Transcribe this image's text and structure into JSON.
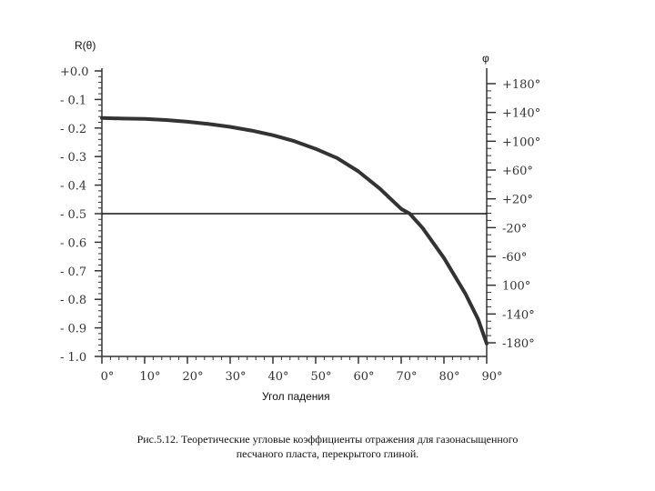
{
  "chart_data": {
    "type": "line",
    "y_left_label": "R(θ)",
    "y_right_label": "φ",
    "xlabel": "Угол падения",
    "xlim": [
      0,
      90
    ],
    "ylim_left": [
      -1.0,
      0.0
    ],
    "x_ticks": [
      0,
      10,
      20,
      30,
      40,
      50,
      60,
      70,
      80,
      90
    ],
    "x_tick_labels": [
      "0°",
      "10°",
      "20°",
      "30°",
      "40°",
      "50°",
      "60°",
      "70°",
      "80°",
      "90°"
    ],
    "y_left_ticks": [
      0.0,
      -0.1,
      -0.2,
      -0.3,
      -0.4,
      -0.5,
      -0.6,
      -0.7,
      -0.8,
      -0.9,
      -1.0
    ],
    "y_left_tick_labels": [
      "+0.0",
      "- 0.1",
      "- 0.2",
      "- 0.3",
      "- 0.4",
      "- 0.5",
      "- 0.6",
      "- 0.7",
      "- 0.8",
      "- 0.9",
      "- 1.0"
    ],
    "y_right_tick_labels": [
      "+180°",
      "+140°",
      "+100°",
      "+60°",
      "+20°",
      "-20°",
      "-60°",
      "100°",
      "-140°",
      "-180°"
    ],
    "reference_line_y": -0.5,
    "series": [
      {
        "x": [
          0,
          5,
          10,
          15,
          20,
          25,
          30,
          35,
          40,
          45,
          50,
          55,
          60,
          65,
          70,
          72,
          75,
          80,
          85,
          88,
          90
        ],
        "values": [
          -0.165,
          -0.167,
          -0.168,
          -0.172,
          -0.178,
          -0.186,
          -0.196,
          -0.209,
          -0.225,
          -0.246,
          -0.273,
          -0.305,
          -0.352,
          -0.412,
          -0.483,
          -0.5,
          -0.55,
          -0.655,
          -0.78,
          -0.87,
          -0.955
        ]
      }
    ]
  },
  "caption": {
    "line1": "Рис.5.12. Теоретические угловые коэффициенты отражения для газонасыщенного",
    "line2": "песчаного пласта, перекрытого глиной."
  }
}
